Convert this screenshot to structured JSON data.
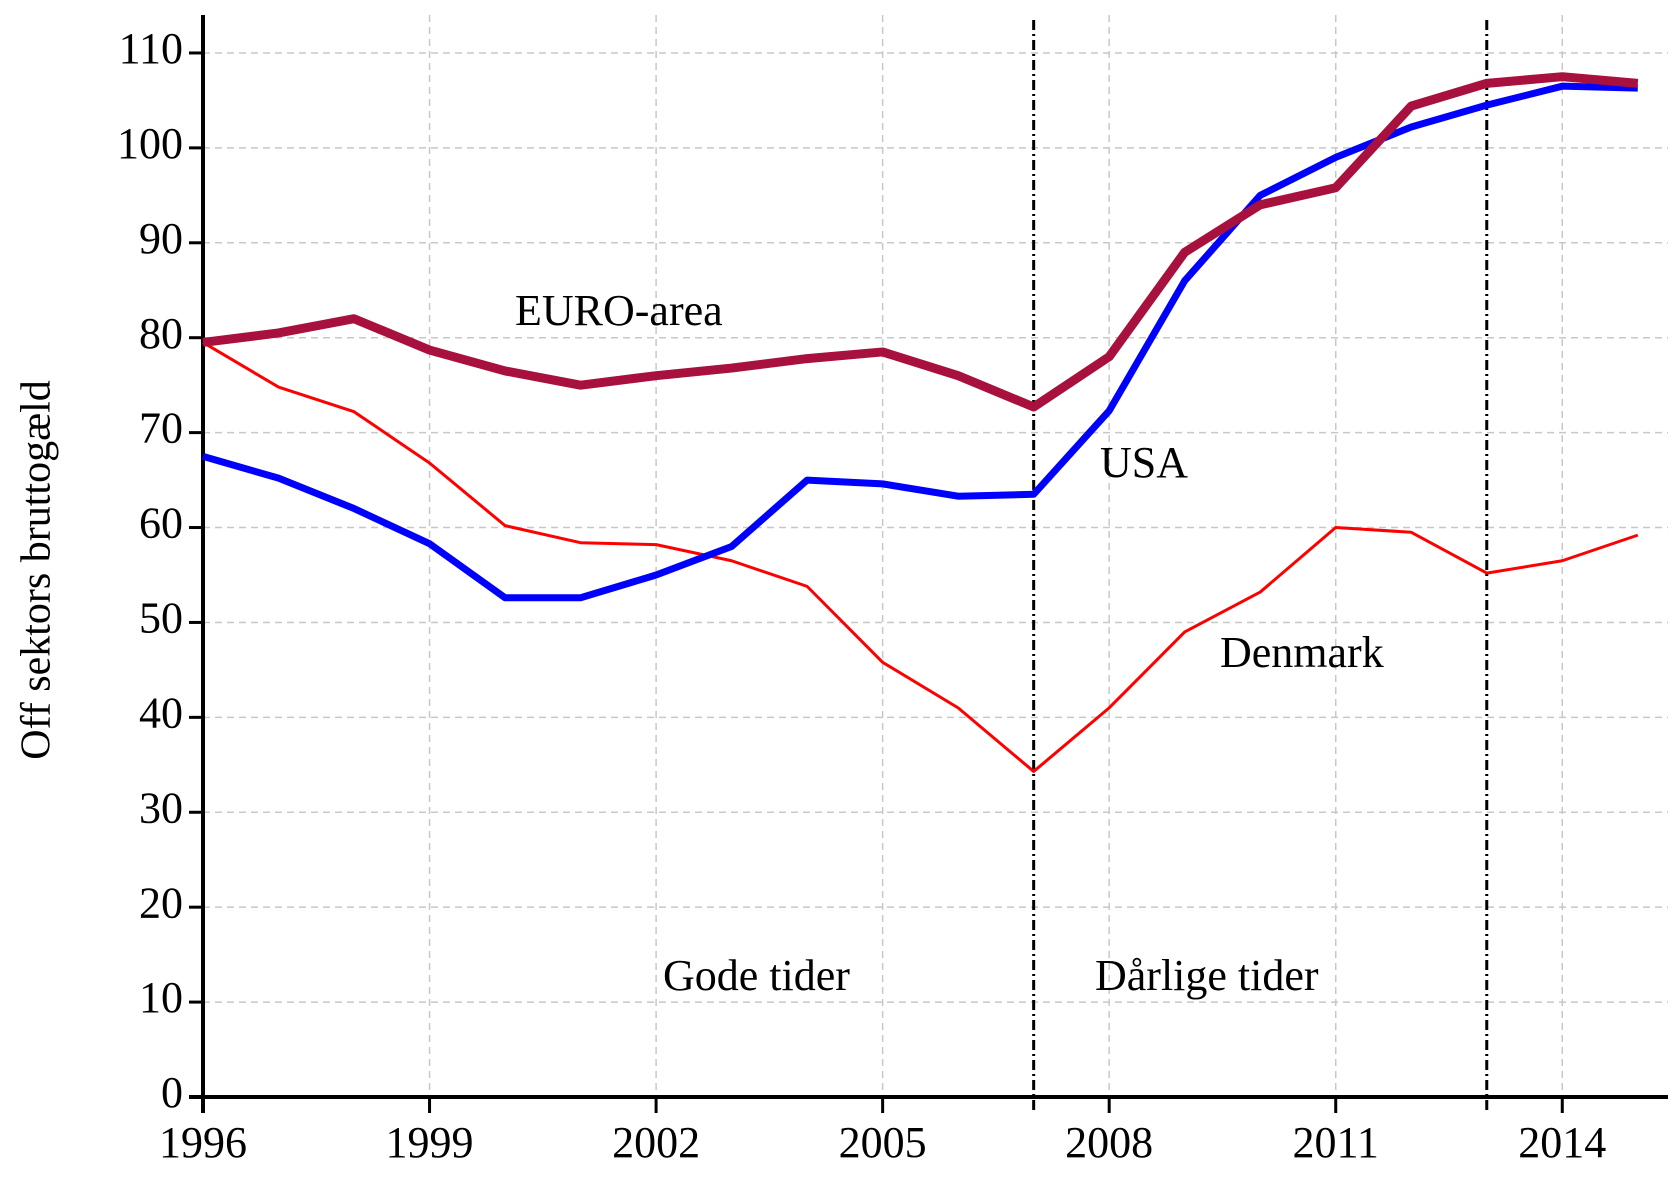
{
  "chart_data": {
    "type": "line",
    "ylabel": "Off sektors bruttogæld",
    "x": [
      1996,
      1997,
      1998,
      1999,
      2000,
      2001,
      2002,
      2003,
      2004,
      2005,
      2006,
      2007,
      2008,
      2009,
      2010,
      2011,
      2012,
      2013,
      2014,
      2015
    ],
    "series": [
      {
        "name": "EURO-area",
        "color": "#a8103e",
        "values": [
          79.5,
          80.5,
          82,
          78.7,
          76.5,
          75,
          76,
          76.8,
          77.8,
          78.5,
          76,
          72.7,
          78,
          89,
          94,
          95.8,
          104.4,
          106.8,
          107.5,
          106.8
        ]
      },
      {
        "name": "USA",
        "color": "#0000ff",
        "values": [
          67.5,
          65.2,
          62,
          58.3,
          52.6,
          52.6,
          55,
          58,
          65,
          64.6,
          63.3,
          63.5,
          72.3,
          86,
          95,
          99,
          102.2,
          104.5,
          106.5,
          106.3
        ]
      },
      {
        "name": "Denmark",
        "color": "#ff0000",
        "values": [
          79.5,
          74.8,
          72.2,
          66.8,
          60.2,
          58.4,
          58.2,
          56.5,
          53.8,
          45.8,
          41,
          34.3,
          41,
          49,
          53.2,
          60,
          59.5,
          55.2,
          56.5,
          59.2
        ]
      }
    ],
    "annotations": [
      "Gode tider",
      "Dårlige tider"
    ],
    "vlines": [
      2007,
      2013
    ],
    "xlim": [
      1996,
      2015.4
    ],
    "xticks": [
      1996,
      1999,
      2002,
      2005,
      2008,
      2011,
      2014
    ],
    "ylim": [
      0,
      114
    ],
    "yticks": [
      0,
      10,
      20,
      30,
      40,
      50,
      60,
      70,
      80,
      90,
      100,
      110
    ],
    "grid": true
  }
}
